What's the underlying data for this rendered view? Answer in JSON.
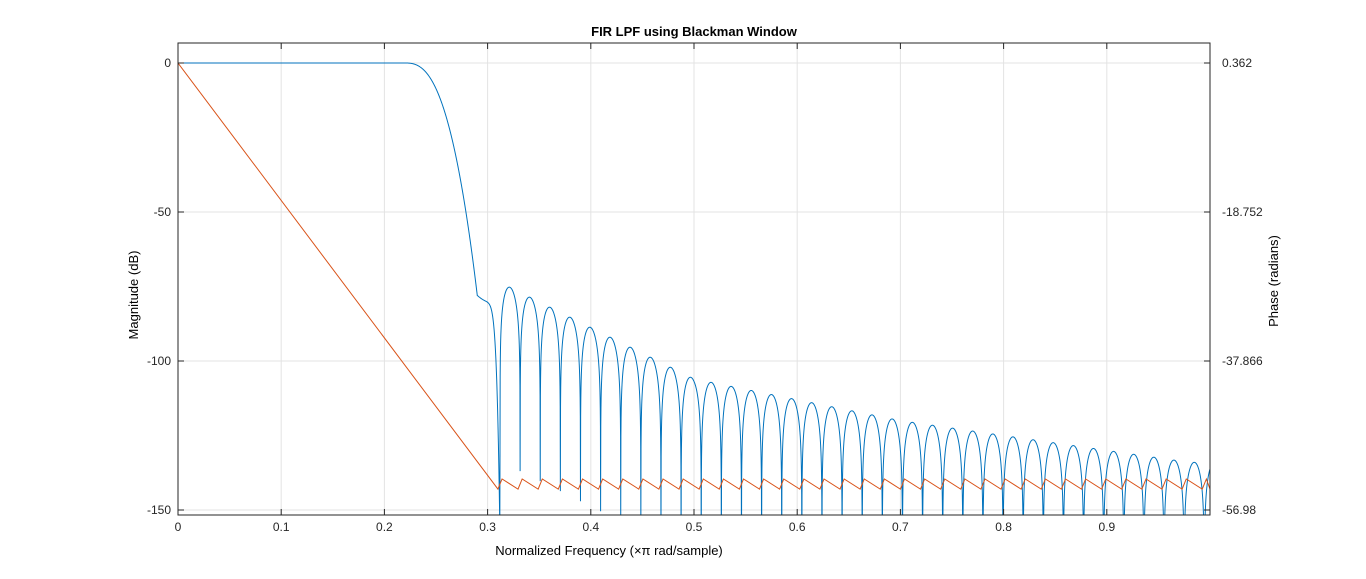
{
  "chart_data": {
    "type": "line",
    "title": "FIR LPF using Blackman Window",
    "xlabel": "Normalized Frequency (×π rad/sample)",
    "ylabel": "Magnitude (dB)",
    "ylabel_right": "Phase (radians)",
    "xlim": [
      0,
      1
    ],
    "ylim": [
      -151.5,
      0
    ],
    "ylim_right": [
      -56.98,
      0.362
    ],
    "grid": true,
    "x_ticks": [
      0,
      0.1,
      0.2,
      0.3,
      0.4,
      0.5,
      0.6,
      0.7,
      0.8,
      0.9
    ],
    "x_tick_labels": [
      "0",
      "0.1",
      "0.2",
      "0.3",
      "0.4",
      "0.5",
      "0.6",
      "0.7",
      "0.8",
      "0.9"
    ],
    "y_ticks": [
      0,
      -50,
      -100,
      -150
    ],
    "y_tick_labels": [
      "0",
      "-50",
      "-100",
      "-150"
    ],
    "y_right_ticks": [
      0.362,
      -18.752,
      -37.866,
      -56.98
    ],
    "y_right_tick_labels": [
      "0.362",
      "-18.752",
      "-37.866",
      "-56.98"
    ],
    "colors": {
      "magnitude": "#0072BD",
      "phase": "#D95319",
      "grid": "#e3e3e3"
    },
    "series": [
      {
        "axis": "left",
        "passband_edge": 0.22,
        "transition_floor": [
          0.29,
          -78
        ],
        "first_null": 0.312,
        "sidelobe_spacing": 0.0195,
        "sidelobe_peaks": [
          [
            0.323,
            -75.5
          ],
          [
            0.5,
            -106
          ],
          [
            0.7,
            -120
          ],
          [
            0.98,
            -134
          ]
        ]
      },
      {
        "axis": "right",
        "linear_start": [
          0,
          0.362
        ],
        "linear_end": [
          0.31,
          -54.3
        ],
        "wrap_band": [
          -53,
          -54.3
        ]
      }
    ]
  }
}
